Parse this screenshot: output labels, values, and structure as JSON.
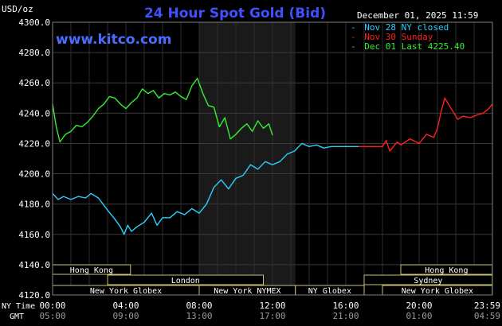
{
  "chart_data": {
    "type": "line",
    "title": "24 Hour Spot Gold (Bid)",
    "ylabel": "USD/oz",
    "watermark": "www.kitco.com",
    "timestamp": "December 01, 2025 11:59",
    "ylim": [
      4120,
      4300
    ],
    "y_ticks": [
      "4300.0",
      "4280.0",
      "4260.0",
      "4240.0",
      "4220.0",
      "4200.0",
      "4180.0",
      "4160.0",
      "4140.0",
      "4120.0"
    ],
    "x_tick_labels": [
      "00:00",
      "04:00",
      "08:00",
      "12:00",
      "16:00",
      "20:00",
      "23:59"
    ],
    "gmt_tick_labels": [
      "05:00",
      "09:00",
      "13:00",
      "17:00",
      "21:00",
      "01:00",
      "04:59"
    ],
    "axis_row_labels": {
      "ny": "NY Time",
      "gmt": "GMT"
    },
    "grid": true,
    "legend_position": "top-right",
    "legend": [
      {
        "marker": "-",
        "text": "Nov 28 NY closed",
        "color": "#2ad0ff"
      },
      {
        "marker": "-",
        "text": "Nov 30 Sunday",
        "color": "#ff2020"
      },
      {
        "marker": "-",
        "text": "Dec 01 Last 4225.40",
        "color": "#33ee33"
      }
    ],
    "shaded_period": {
      "label": "New York NYMEX",
      "start_hour": 8.0,
      "end_hour": 13.25
    },
    "market_sessions": [
      {
        "label": "Hong Kong",
        "start_hour": 0.0,
        "end_hour": 4.25
      },
      {
        "label": "London",
        "start_hour": 3.0,
        "end_hour": 11.5
      },
      {
        "label": "New York Globex",
        "start_hour": 0.0,
        "end_hour": 8.0
      },
      {
        "label": "New York NYMEX",
        "start_hour": 8.0,
        "end_hour": 13.25
      },
      {
        "label": "NY Globex",
        "start_hour": 13.25,
        "end_hour": 17.0
      },
      {
        "label": "Hong Kong",
        "start_hour": 19.0,
        "end_hour": 23.99
      },
      {
        "label": "Sydney",
        "start_hour": 17.0,
        "end_hour": 23.99
      },
      {
        "label": "New York Globex",
        "start_hour": 18.0,
        "end_hour": 23.99
      }
    ],
    "series": [
      {
        "name": "Nov 28 NY closed",
        "color": "#2ad0ff",
        "x": [
          0.0,
          0.3,
          0.6,
          1.0,
          1.4,
          1.8,
          2.1,
          2.5,
          3.0,
          3.4,
          3.7,
          3.9,
          4.1,
          4.3,
          4.6,
          5.0,
          5.4,
          5.7,
          6.0,
          6.4,
          6.8,
          7.2,
          7.6,
          8.0,
          8.4,
          8.8,
          9.2,
          9.6,
          10.0,
          10.4,
          10.8,
          11.2,
          11.6,
          12.0,
          12.4,
          12.8,
          13.2,
          13.6,
          14.0,
          14.4,
          14.8,
          15.2,
          15.6,
          16.0,
          16.4,
          16.7
        ],
        "y": [
          4187,
          4183,
          4185,
          4183,
          4185,
          4184,
          4187,
          4184,
          4176,
          4170,
          4165,
          4160,
          4166,
          4162,
          4165,
          4168,
          4174,
          4166,
          4171,
          4171,
          4175,
          4173,
          4177,
          4174,
          4180,
          4191,
          4196,
          4190,
          4197,
          4199,
          4206,
          4203,
          4208,
          4206,
          4208,
          4213,
          4215,
          4220,
          4218,
          4219,
          4217,
          4218,
          4218,
          4218,
          4218,
          4218
        ]
      },
      {
        "name": "Nov 30 Sunday",
        "color": "#ff2020",
        "x": [
          16.7,
          17.5,
          18.0,
          18.2,
          18.4,
          18.6,
          18.8,
          19.0,
          19.5,
          20.0,
          20.4,
          20.8,
          21.0,
          21.2,
          21.4,
          21.7,
          21.9,
          22.1,
          22.4,
          22.8,
          23.2,
          23.5,
          23.8,
          23.99
        ],
        "y": [
          4218,
          4218,
          4218,
          4222,
          4215,
          4218,
          4221,
          4219,
          4223,
          4220,
          4226,
          4224,
          4230,
          4241,
          4250,
          4244,
          4240,
          4236,
          4238,
          4237,
          4239,
          4240,
          4243,
          4246
        ]
      },
      {
        "name": "Dec 01 Last 4225.40",
        "color": "#33ee33",
        "x": [
          0.0,
          0.2,
          0.4,
          0.7,
          1.0,
          1.3,
          1.6,
          1.9,
          2.2,
          2.5,
          2.8,
          3.1,
          3.4,
          3.7,
          4.0,
          4.3,
          4.6,
          4.9,
          5.2,
          5.5,
          5.8,
          6.1,
          6.4,
          6.7,
          7.0,
          7.3,
          7.6,
          7.9,
          8.2,
          8.5,
          8.8,
          9.1,
          9.4,
          9.7,
          10.0,
          10.3,
          10.6,
          10.9,
          11.2,
          11.5,
          11.8,
          12.0
        ],
        "y": [
          4246,
          4231,
          4221,
          4226,
          4228,
          4232,
          4231,
          4234,
          4238,
          4243,
          4246,
          4251,
          4250,
          4246,
          4243,
          4247,
          4250,
          4256,
          4253,
          4255,
          4250,
          4253,
          4252,
          4254,
          4251,
          4249,
          4258,
          4263,
          4253,
          4245,
          4244,
          4231,
          4237,
          4223,
          4226,
          4230,
          4233,
          4228,
          4235,
          4230,
          4233,
          4225.4
        ]
      }
    ]
  }
}
